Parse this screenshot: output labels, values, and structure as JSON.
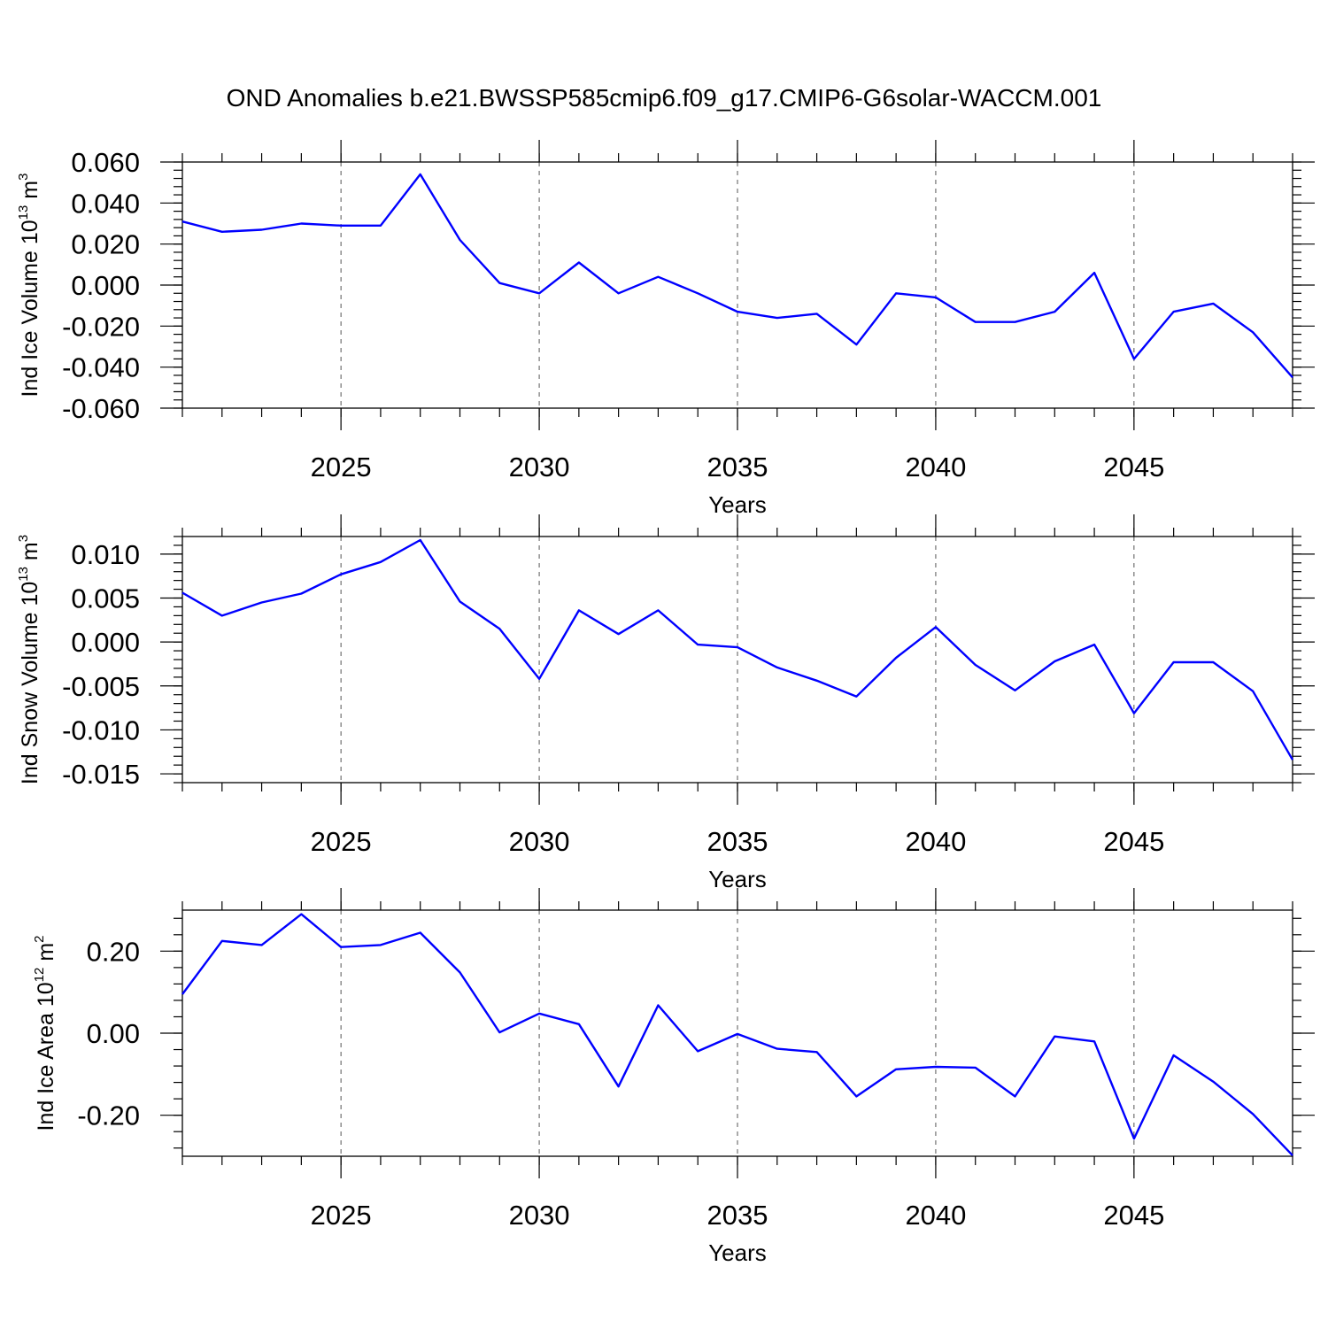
{
  "title": "OND Anomalies b.e21.BWSSP585cmip6.f09_g17.CMIP6-G6solar-WACCM.001",
  "colors": {
    "line": "#0000ff",
    "axes": "#000000",
    "grid": "#555555"
  },
  "chart_data": [
    {
      "type": "line",
      "xlabel": "Years",
      "ylabel": {
        "main": "Ind Ice Volume 10",
        "sup": "13",
        "unit": " m",
        "unit_sup": "3"
      },
      "xlim": [
        2021,
        2049
      ],
      "ylim": [
        -0.06,
        0.06
      ],
      "xticks": [
        "2025",
        "2030",
        "2035",
        "2040",
        "2045"
      ],
      "yticks": [
        "0.060",
        "0.040",
        "0.020",
        "0.000",
        "-0.020",
        "-0.040",
        "-0.060"
      ],
      "grid": "vertical dashed at labeled years",
      "series": [
        {
          "x": [
            2021,
            2022,
            2023,
            2024,
            2025,
            2026,
            2027,
            2028,
            2029,
            2030,
            2031,
            2032,
            2033,
            2034,
            2035,
            2036,
            2037,
            2038,
            2039,
            2040,
            2041,
            2042,
            2043,
            2044,
            2045,
            2046,
            2047,
            2048,
            2049
          ],
          "values": [
            0.031,
            0.026,
            0.027,
            0.03,
            0.029,
            0.029,
            0.054,
            0.022,
            0.001,
            -0.004,
            0.011,
            -0.004,
            0.004,
            -0.004,
            -0.013,
            -0.016,
            -0.014,
            -0.029,
            -0.004,
            -0.006,
            -0.018,
            -0.018,
            -0.013,
            0.006,
            -0.036,
            -0.013,
            -0.009,
            -0.023,
            -0.045
          ]
        }
      ]
    },
    {
      "type": "line",
      "xlabel": "Years",
      "ylabel": {
        "main": "Ind Snow Volume 10",
        "sup": "13",
        "unit": " m",
        "unit_sup": "3"
      },
      "xlim": [
        2021,
        2049
      ],
      "ylim": [
        -0.016,
        0.012
      ],
      "xticks": [
        "2025",
        "2030",
        "2035",
        "2040",
        "2045"
      ],
      "yticks": [
        "0.010",
        "0.005",
        "0.000",
        "-0.005",
        "-0.010",
        "-0.015"
      ],
      "grid": "vertical dashed at labeled years",
      "series": [
        {
          "x": [
            2021,
            2022,
            2023,
            2024,
            2025,
            2026,
            2027,
            2028,
            2029,
            2030,
            2031,
            2032,
            2033,
            2034,
            2035,
            2036,
            2037,
            2038,
            2039,
            2040,
            2041,
            2042,
            2043,
            2044,
            2045,
            2046,
            2047,
            2048,
            2049
          ],
          "values": [
            0.0056,
            0.003,
            0.0045,
            0.0055,
            0.0077,
            0.0091,
            0.0116,
            0.0046,
            0.0015,
            -0.0042,
            0.0036,
            0.0009,
            0.0036,
            -0.0003,
            -0.0006,
            -0.0029,
            -0.0044,
            -0.0062,
            -0.0018,
            0.0017,
            -0.0026,
            -0.0055,
            -0.0022,
            -0.0003,
            -0.0081,
            -0.0023,
            -0.0023,
            -0.0056,
            -0.0134
          ]
        }
      ]
    },
    {
      "type": "line",
      "xlabel": "Years",
      "ylabel": {
        "main": "Ind Ice Area 10",
        "sup": "12",
        "unit": " m",
        "unit_sup": "2"
      },
      "xlim": [
        2021,
        2049
      ],
      "ylim": [
        -0.3,
        0.3
      ],
      "xticks": [
        "2025",
        "2030",
        "2035",
        "2040",
        "2045"
      ],
      "yticks": [
        "0.20",
        "0.00",
        "-0.20"
      ],
      "grid": "vertical dashed at labeled years",
      "series": [
        {
          "x": [
            2021,
            2022,
            2023,
            2024,
            2025,
            2026,
            2027,
            2028,
            2029,
            2030,
            2031,
            2032,
            2033,
            2034,
            2035,
            2036,
            2037,
            2038,
            2039,
            2040,
            2041,
            2042,
            2043,
            2044,
            2045,
            2046,
            2047,
            2048,
            2049
          ],
          "values": [
            0.095,
            0.225,
            0.215,
            0.29,
            0.21,
            0.215,
            0.245,
            0.148,
            0.002,
            0.048,
            0.022,
            -0.13,
            0.068,
            -0.044,
            -0.002,
            -0.038,
            -0.046,
            -0.154,
            -0.088,
            -0.082,
            -0.084,
            -0.154,
            -0.008,
            -0.02,
            -0.257,
            -0.054,
            -0.118,
            -0.197,
            -0.298
          ]
        }
      ]
    }
  ]
}
